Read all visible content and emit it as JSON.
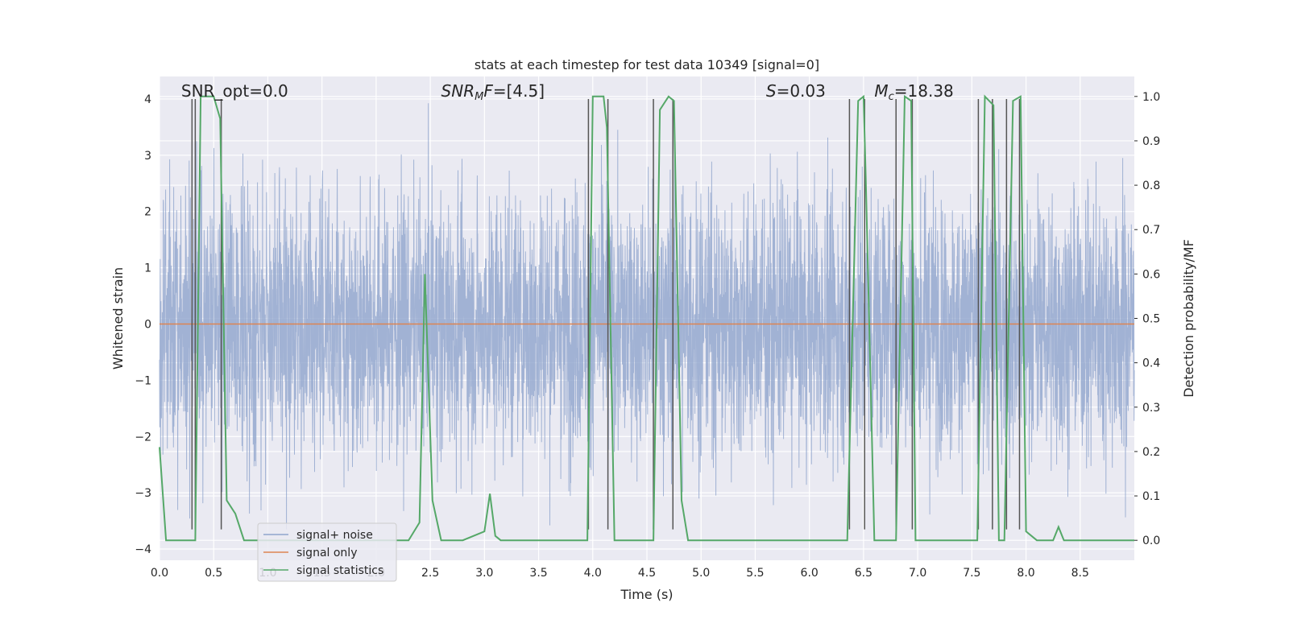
{
  "chart_data": {
    "type": "line",
    "title": "stats at each timestep for test data 10349 [signal=0]",
    "xlabel": "Time (s)",
    "ylabel": "Whitened strain",
    "y2label": "Detection probability/MF",
    "xlim": [
      0.0,
      9.0
    ],
    "ylim": [
      -4.2,
      4.4
    ],
    "y2lim": [
      -0.045,
      1.045
    ],
    "xticks": [
      "0.0",
      "0.5",
      "1.0",
      "1.5",
      "2.0",
      "2.5",
      "3.0",
      "3.5",
      "4.0",
      "4.5",
      "5.0",
      "5.5",
      "6.0",
      "6.5",
      "7.0",
      "7.5",
      "8.0",
      "8.5"
    ],
    "yticks": [
      "4",
      "3",
      "2",
      "1",
      "0",
      "−1",
      "−2",
      "−3",
      "−4"
    ],
    "y2ticks": [
      "1.0",
      "0.9",
      "0.8",
      "0.7",
      "0.6",
      "0.5",
      "0.4",
      "0.3",
      "0.2",
      "0.1",
      "0.0"
    ],
    "grid": true,
    "legend_position": "lower-left",
    "annotations": [
      {
        "text": "SNR_opt=0.0",
        "x": 0.2
      },
      {
        "text": "=[4.5]",
        "x": 2.6,
        "italic_prefix": "SNR",
        "sub": "M",
        "italic_suffix": "F"
      },
      {
        "text": "=0.03",
        "x": 5.6,
        "italic_prefix": "S"
      },
      {
        "text": "=18.38",
        "x": 6.6,
        "italic_prefix": "M",
        "sub": "c"
      }
    ],
    "series": [
      {
        "name": "signal+ noise",
        "color": "#8fa4cc",
        "style": "noise",
        "x_range": [
          0.0,
          9.0
        ],
        "sample_rate": 512,
        "envelope": {
          "p70": 1.7,
          "p30": -1.6,
          "max": 4.0,
          "min": -3.7
        }
      },
      {
        "name": "signal only",
        "color": "#dd8452",
        "x": [
          0.0,
          9.0
        ],
        "y": [
          0.0,
          0.0
        ]
      },
      {
        "name": "signal statistics",
        "color": "#55a868",
        "axis": "right",
        "x": [
          0.0,
          0.06,
          0.3,
          0.33,
          0.38,
          0.5,
          0.56,
          0.62,
          0.7,
          0.78,
          0.85,
          1.0,
          1.5,
          2.0,
          2.3,
          2.4,
          2.45,
          2.52,
          2.6,
          2.8,
          3.0,
          3.05,
          3.1,
          3.15,
          3.3,
          3.6,
          3.95,
          4.0,
          4.1,
          4.13,
          4.2,
          4.5,
          4.56,
          4.62,
          4.7,
          4.75,
          4.82,
          4.88,
          5.0,
          5.5,
          6.0,
          6.35,
          6.45,
          6.5,
          6.52,
          6.6,
          6.72,
          6.8,
          6.88,
          6.94,
          6.98,
          7.0,
          7.3,
          7.5,
          7.55,
          7.62,
          7.7,
          7.75,
          7.8,
          7.88,
          7.95,
          8.0,
          8.1,
          8.25,
          8.3,
          8.35,
          8.5,
          9.0
        ],
        "y": [
          0.21,
          0.0,
          0.0,
          0.0,
          1.0,
          1.0,
          0.95,
          0.09,
          0.06,
          0.0,
          0.0,
          0.0,
          0.0,
          0.0,
          0.0,
          0.04,
          0.6,
          0.09,
          0.0,
          0.0,
          0.02,
          0.105,
          0.01,
          0.0,
          0.0,
          0.0,
          0.0,
          1.0,
          1.0,
          0.93,
          0.0,
          0.0,
          0.0,
          0.97,
          1.0,
          0.99,
          0.09,
          0.0,
          0.0,
          0.0,
          0.0,
          0.0,
          0.99,
          1.0,
          0.82,
          0.0,
          0.0,
          0.0,
          1.0,
          0.99,
          0.0,
          0.0,
          0.0,
          0.0,
          0.0,
          1.0,
          0.98,
          0.0,
          0.0,
          0.99,
          1.0,
          0.02,
          0.0,
          0.0,
          0.03,
          0.0,
          0.0,
          0.0
        ]
      }
    ],
    "vlines": [
      0.3,
      0.33,
      0.57,
      3.96,
      4.14,
      4.56,
      4.74,
      6.37,
      6.51,
      6.8,
      6.95,
      7.56,
      7.69,
      7.82,
      7.94
    ],
    "vline_color": "#555555"
  }
}
